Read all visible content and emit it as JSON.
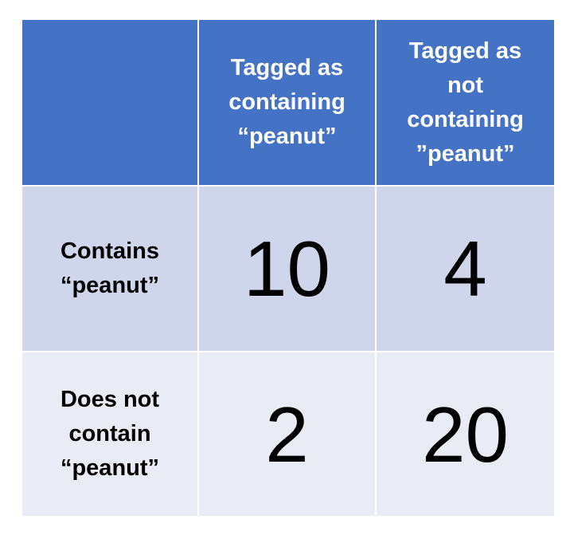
{
  "chart_data": {
    "type": "table",
    "corner": "",
    "columns": [
      "Tagged as containing “peanut”",
      "Tagged as not containing ”peanut”"
    ],
    "column_lines": [
      [
        "Tagged as",
        "containing",
        "“peanut”"
      ],
      [
        "Tagged as",
        "not",
        "containing",
        "”peanut”"
      ]
    ],
    "rows": [
      {
        "label": "Contains “peanut”",
        "label_lines": [
          "Contains",
          "“peanut”"
        ],
        "values": [
          10,
          4
        ]
      },
      {
        "label": "Does not contain “peanut”",
        "label_lines": [
          "Does not",
          "contain",
          "“peanut”"
        ],
        "values": [
          2,
          20
        ]
      }
    ]
  },
  "colors": {
    "header_background": "#4472c4",
    "header_text": "#ffffff",
    "row_a_background": "#cfd5ea",
    "row_b_background": "#e9ebf5",
    "body_text": "#000000"
  }
}
